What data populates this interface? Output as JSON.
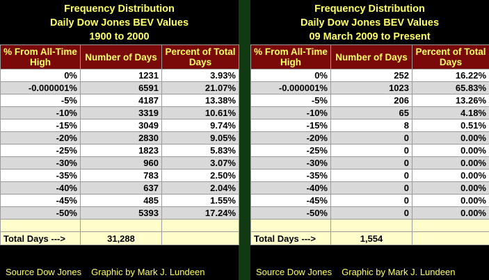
{
  "headers": {
    "col1": "% From All-Time High",
    "col2": "Number of Days",
    "col3": "Percent of Total Days"
  },
  "left": {
    "title": [
      "Frequency Distribution",
      "Daily Dow Jones BEV Values",
      "1900 to 2000"
    ],
    "rows": [
      [
        "0%",
        "1231",
        "3.93%"
      ],
      [
        "-0.000001%",
        "6591",
        "21.07%"
      ],
      [
        "-5%",
        "4187",
        "13.38%"
      ],
      [
        "-10%",
        "3319",
        "10.61%"
      ],
      [
        "-15%",
        "3049",
        "9.74%"
      ],
      [
        "-20%",
        "2830",
        "9.05%"
      ],
      [
        "-25%",
        "1823",
        "5.83%"
      ],
      [
        "-30%",
        "960",
        "3.07%"
      ],
      [
        "-35%",
        "783",
        "2.50%"
      ],
      [
        "-40%",
        "637",
        "2.04%"
      ],
      [
        "-45%",
        "485",
        "1.55%"
      ],
      [
        "-50%",
        "5393",
        "17.24%"
      ]
    ],
    "total_label": "Total Days --->",
    "total_value": "31,288",
    "source": "Source Dow Jones",
    "credit": "Graphic by Mark J. Lundeen"
  },
  "right": {
    "title": [
      "Frequency Distribution",
      "Daily Dow Jones BEV Values",
      "09 March 2009 to Present"
    ],
    "rows": [
      [
        "0%",
        "252",
        "16.22%"
      ],
      [
        "-0.000001%",
        "1023",
        "65.83%"
      ],
      [
        "-5%",
        "206",
        "13.26%"
      ],
      [
        "-10%",
        "65",
        "4.18%"
      ],
      [
        "-15%",
        "8",
        "0.51%"
      ],
      [
        "-20%",
        "0",
        "0.00%"
      ],
      [
        "-25%",
        "0",
        "0.00%"
      ],
      [
        "-30%",
        "0",
        "0.00%"
      ],
      [
        "-35%",
        "0",
        "0.00%"
      ],
      [
        "-40%",
        "0",
        "0.00%"
      ],
      [
        "-45%",
        "0",
        "0.00%"
      ],
      [
        "-50%",
        "0",
        "0.00%"
      ]
    ],
    "total_label": "Total Days --->",
    "total_value": "1,554",
    "source": "Source Dow Jones",
    "credit": "Graphic by Mark J. Lundeen"
  },
  "colors": {
    "background": "#000000",
    "title_text": "#ffff66",
    "header_bg": "#7a0a0a",
    "row_alt": "#d9d9d9",
    "total_bg": "#ffffcc"
  }
}
